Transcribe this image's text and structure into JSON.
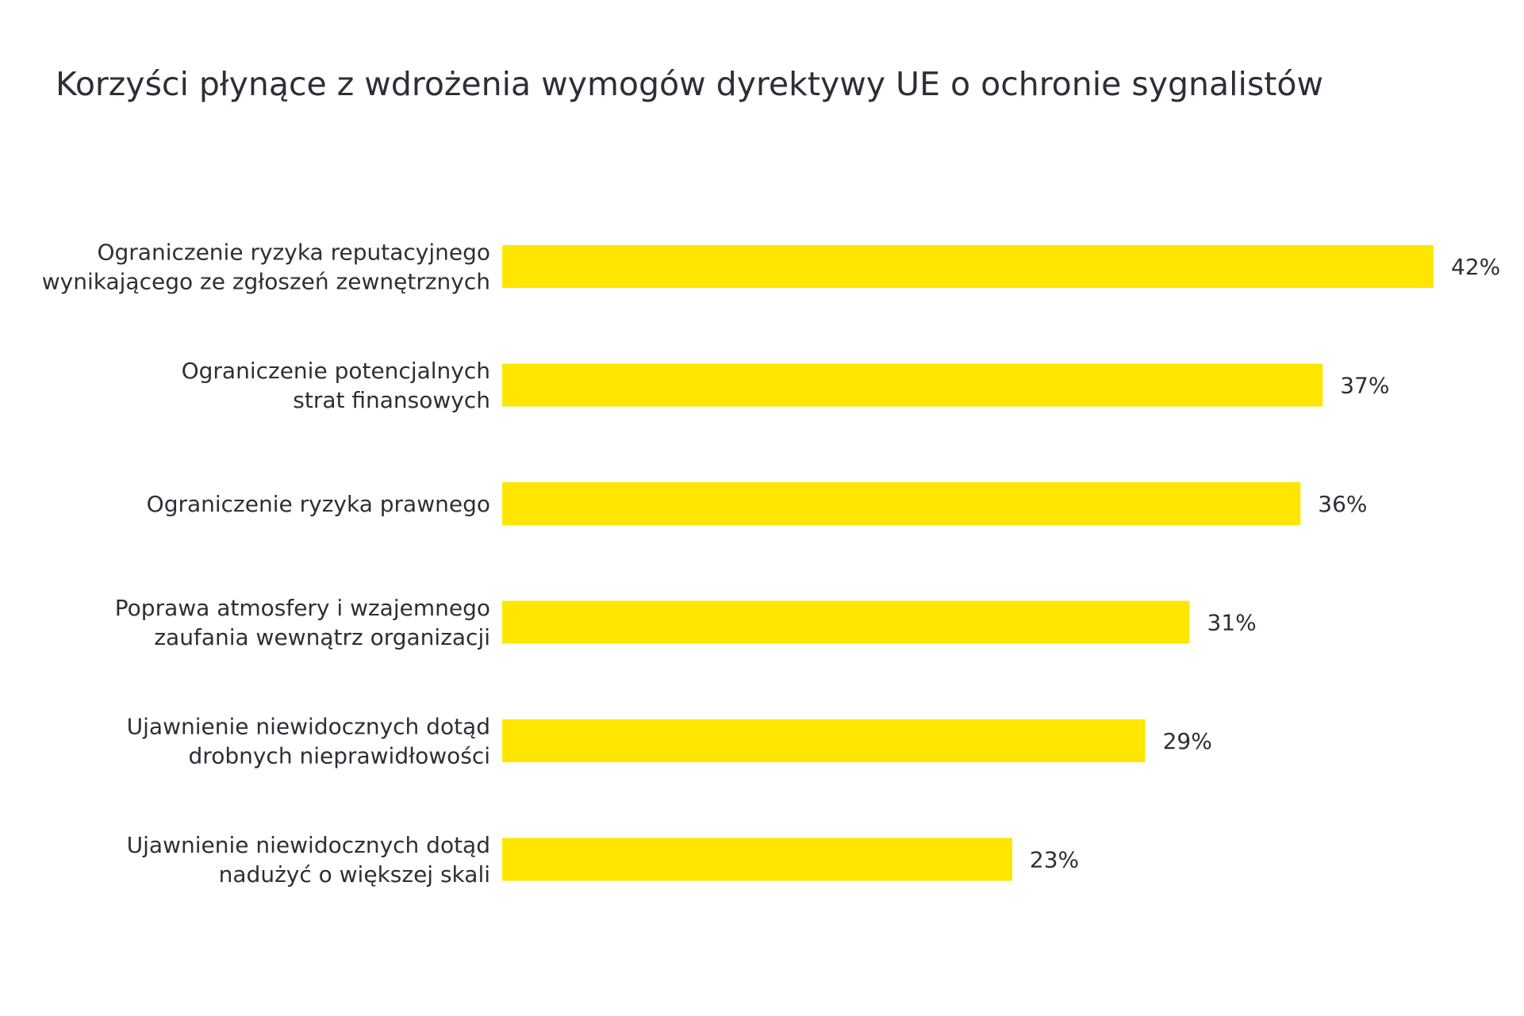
{
  "chart_data": {
    "type": "bar",
    "orientation": "horizontal",
    "title": "Korzyści płynące z wdrożenia wymogów dyrektywy UE o ochronie sygnalistów",
    "categories": [
      [
        "Ograniczenie ryzyka reputacyjnego",
        "wynikającego ze zgłoszeń zewnętrznych"
      ],
      [
        "Ograniczenie potencjalnych",
        "strat finansowych"
      ],
      [
        "Ograniczenie ryzyka prawnego"
      ],
      [
        "Poprawa atmosfery i wzajemnego",
        "zaufania wewnątrz organizacji"
      ],
      [
        "Ujawnienie niewidocznych dotąd",
        "drobnych nieprawidłowości"
      ],
      [
        "Ujawnienie niewidocznych dotąd",
        "nadużyć o większej skali"
      ]
    ],
    "values": [
      42,
      37,
      36,
      31,
      29,
      23
    ],
    "value_labels": [
      "42%",
      "37%",
      "36%",
      "31%",
      "29%",
      "23%"
    ],
    "xlim": [
      0,
      42
    ],
    "xlabel": "",
    "ylabel": "",
    "grid": false,
    "legend": "none",
    "bar_color": "#ffe600",
    "text_color": "#2e2e38"
  }
}
